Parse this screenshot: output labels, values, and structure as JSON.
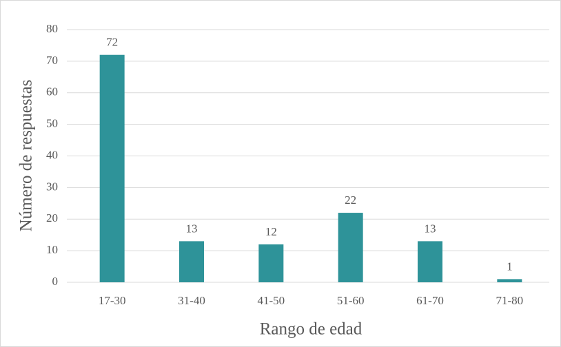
{
  "chart_data": {
    "type": "bar",
    "x_label": "Rango de edad",
    "y_label": "Número de respuestas",
    "categories": [
      "17-30",
      "31-40",
      "41-50",
      "51-60",
      "61-70",
      "71-80"
    ],
    "values": [
      72,
      13,
      12,
      22,
      13,
      1
    ],
    "color": "#2e9399",
    "ylim": [
      0,
      80
    ],
    "yticks": [
      0,
      10,
      20,
      30,
      40,
      50,
      60,
      70,
      80
    ],
    "grid": true
  }
}
